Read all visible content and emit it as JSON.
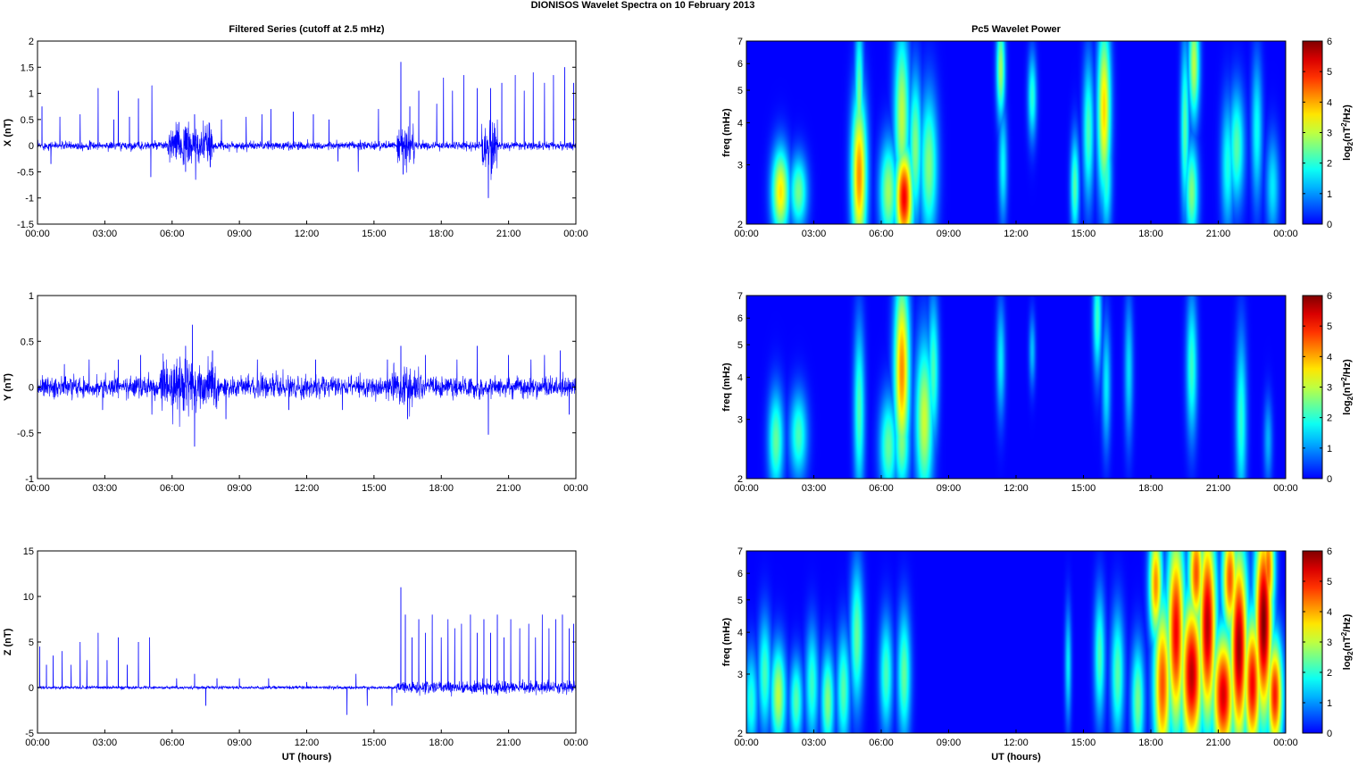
{
  "figure_title": "DIONISOS Wavelet Spectra on 10 February  2013",
  "chart_data": [
    {
      "type": "line",
      "title": "Filtered Series (cutoff at 2.5 mHz)",
      "xlabel": "",
      "ylabel": "X (nT)",
      "xlim": [
        0,
        24
      ],
      "ylim": [
        -1.5,
        2
      ],
      "xticklabels": [
        "00:00",
        "03:00",
        "06:00",
        "09:00",
        "12:00",
        "15:00",
        "18:00",
        "21:00",
        "00:00"
      ],
      "yticks": [
        -1.5,
        -1,
        -0.5,
        0,
        0.5,
        1,
        1.5,
        2
      ],
      "color": "#0000ff",
      "baseline_noise": 0.07,
      "spikes": [
        [
          0.2,
          0.75
        ],
        [
          0.6,
          -0.35
        ],
        [
          1.0,
          0.55
        ],
        [
          1.9,
          0.6
        ],
        [
          2.7,
          1.1
        ],
        [
          3.4,
          0.5
        ],
        [
          3.6,
          1.05
        ],
        [
          4.1,
          0.55
        ],
        [
          4.5,
          0.9
        ],
        [
          5.05,
          -0.6
        ],
        [
          5.1,
          1.15
        ],
        [
          6.3,
          0.45
        ],
        [
          6.6,
          -0.5
        ],
        [
          7.0,
          0.6
        ],
        [
          7.05,
          -0.65
        ],
        [
          7.7,
          -0.4
        ],
        [
          8.2,
          0.5
        ],
        [
          9.3,
          0.55
        ],
        [
          10.0,
          0.6
        ],
        [
          10.4,
          0.7
        ],
        [
          11.4,
          0.65
        ],
        [
          12.3,
          0.6
        ],
        [
          13.0,
          0.5
        ],
        [
          13.4,
          -0.3
        ],
        [
          14.3,
          -0.5
        ],
        [
          15.2,
          0.7
        ],
        [
          16.2,
          1.6
        ],
        [
          16.3,
          -0.55
        ],
        [
          16.6,
          0.75
        ],
        [
          17.0,
          1.05
        ],
        [
          17.8,
          0.8
        ],
        [
          18.1,
          1.3
        ],
        [
          18.5,
          1.05
        ],
        [
          19.0,
          1.35
        ],
        [
          19.6,
          1.1
        ],
        [
          20.1,
          -1.0
        ],
        [
          20.2,
          1.1
        ],
        [
          20.7,
          1.2
        ],
        [
          21.3,
          1.35
        ],
        [
          21.7,
          1.05
        ],
        [
          22.1,
          1.4
        ],
        [
          22.6,
          1.2
        ],
        [
          23.0,
          1.35
        ],
        [
          23.5,
          1.5
        ],
        [
          23.9,
          1.2
        ]
      ],
      "wiggle_bursts": [
        [
          5.8,
          7.8,
          0.35
        ],
        [
          16.0,
          16.8,
          0.35
        ],
        [
          19.8,
          20.5,
          0.45
        ]
      ]
    },
    {
      "type": "line",
      "title": "",
      "xlabel": "",
      "ylabel": "Y (nT)",
      "xlim": [
        0,
        24
      ],
      "ylim": [
        -1,
        1
      ],
      "xticklabels": [
        "00:00",
        "03:00",
        "06:00",
        "09:00",
        "12:00",
        "15:00",
        "18:00",
        "21:00",
        "00:00"
      ],
      "yticks": [
        -1,
        -0.5,
        0,
        0.5,
        1
      ],
      "color": "#0000ff",
      "baseline_noise": 0.1,
      "spikes": [
        [
          1.2,
          0.25
        ],
        [
          2.3,
          0.3
        ],
        [
          2.9,
          -0.25
        ],
        [
          3.6,
          0.3
        ],
        [
          4.6,
          0.35
        ],
        [
          5.1,
          -0.3
        ],
        [
          6.6,
          0.45
        ],
        [
          6.9,
          0.68
        ],
        [
          7.0,
          -0.65
        ],
        [
          7.8,
          0.4
        ],
        [
          8.4,
          -0.35
        ],
        [
          9.8,
          0.3
        ],
        [
          11.2,
          -0.25
        ],
        [
          12.4,
          0.3
        ],
        [
          13.6,
          -0.25
        ],
        [
          15.6,
          0.3
        ],
        [
          16.2,
          0.45
        ],
        [
          16.5,
          -0.35
        ],
        [
          17.3,
          0.35
        ],
        [
          18.7,
          0.3
        ],
        [
          19.6,
          0.45
        ],
        [
          20.1,
          -0.52
        ],
        [
          21.0,
          0.35
        ],
        [
          22.0,
          0.3
        ],
        [
          22.6,
          0.35
        ],
        [
          23.3,
          0.4
        ],
        [
          23.7,
          -0.3
        ]
      ],
      "wiggle_bursts": [
        [
          5.5,
          8.0,
          0.25
        ],
        [
          15.8,
          17.0,
          0.2
        ]
      ]
    },
    {
      "type": "line",
      "title": "",
      "xlabel": "UT (hours)",
      "ylabel": "Z (nT)",
      "xlim": [
        0,
        24
      ],
      "ylim": [
        -5,
        15
      ],
      "xticklabels": [
        "00:00",
        "03:00",
        "06:00",
        "09:00",
        "12:00",
        "15:00",
        "18:00",
        "21:00",
        "00:00"
      ],
      "yticks": [
        -5,
        0,
        5,
        10,
        15
      ],
      "color": "#0000ff",
      "baseline_noise": 0.15,
      "spikes": [
        [
          0.1,
          4.5
        ],
        [
          0.4,
          2.5
        ],
        [
          0.7,
          3.5
        ],
        [
          1.1,
          4.0
        ],
        [
          1.5,
          2.5
        ],
        [
          1.9,
          5.0
        ],
        [
          2.2,
          3.0
        ],
        [
          2.7,
          6.0
        ],
        [
          3.1,
          3.0
        ],
        [
          3.6,
          5.5
        ],
        [
          4.0,
          2.5
        ],
        [
          4.5,
          5.0
        ],
        [
          5.0,
          5.5
        ],
        [
          6.2,
          1.0
        ],
        [
          7.0,
          1.5
        ],
        [
          7.5,
          -2.0
        ],
        [
          8.0,
          1.0
        ],
        [
          9.0,
          1.0
        ],
        [
          10.3,
          1.0
        ],
        [
          12.0,
          0.6
        ],
        [
          13.8,
          -3.0
        ],
        [
          14.2,
          1.5
        ],
        [
          14.7,
          -2.0
        ],
        [
          15.8,
          -2.0
        ],
        [
          16.2,
          11.0
        ],
        [
          16.4,
          8.0
        ],
        [
          16.7,
          5.5
        ],
        [
          17.0,
          7.5
        ],
        [
          17.3,
          6.0
        ],
        [
          17.6,
          8.0
        ],
        [
          18.0,
          5.5
        ],
        [
          18.3,
          7.5
        ],
        [
          18.6,
          6.5
        ],
        [
          18.9,
          7.0
        ],
        [
          19.3,
          8.0
        ],
        [
          19.6,
          6.0
        ],
        [
          19.9,
          7.5
        ],
        [
          20.2,
          6.0
        ],
        [
          20.5,
          8.0
        ],
        [
          20.8,
          5.5
        ],
        [
          21.1,
          7.5
        ],
        [
          21.5,
          6.5
        ],
        [
          21.9,
          7.0
        ],
        [
          22.2,
          5.5
        ],
        [
          22.5,
          8.0
        ],
        [
          22.8,
          6.5
        ],
        [
          23.1,
          7.5
        ],
        [
          23.4,
          8.0
        ],
        [
          23.7,
          6.5
        ],
        [
          23.9,
          7.0
        ]
      ],
      "wiggle_bursts": [
        [
          16.0,
          24.0,
          0.6
        ]
      ]
    },
    {
      "type": "heatmap",
      "title": "Pc5 Wavelet Power",
      "xlabel": "",
      "ylabel": "freq (mHz)",
      "xlim": [
        0,
        24
      ],
      "ylim": [
        2,
        7
      ],
      "yscale": "log",
      "xticklabels": [
        "00:00",
        "03:00",
        "06:00",
        "09:00",
        "12:00",
        "15:00",
        "18:00",
        "21:00",
        "00:00"
      ],
      "yticks": [
        2,
        3,
        4,
        5,
        6,
        7
      ],
      "colorbar_label": "log2(nT2/Hz)",
      "colorbar_ticks": [
        0,
        1,
        2,
        3,
        4,
        5,
        6
      ],
      "clim": [
        0,
        6
      ],
      "blobs": [
        [
          1.5,
          2.5,
          0.4,
          0.3,
          3.6
        ],
        [
          2.3,
          2.5,
          0.4,
          0.25,
          2.5
        ],
        [
          5.0,
          2.8,
          0.35,
          0.55,
          4.2
        ],
        [
          5.0,
          4.5,
          0.2,
          0.6,
          2.5
        ],
        [
          6.3,
          2.5,
          0.4,
          0.35,
          2.8
        ],
        [
          7.0,
          2.4,
          0.4,
          0.35,
          5.2
        ],
        [
          6.9,
          4.2,
          0.35,
          0.6,
          3.0
        ],
        [
          7.5,
          3.4,
          0.3,
          0.5,
          2.6
        ],
        [
          8.1,
          3.0,
          0.4,
          0.5,
          2.6
        ],
        [
          11.3,
          5.8,
          0.2,
          0.35,
          2.8
        ],
        [
          11.4,
          3.0,
          0.2,
          0.4,
          1.7
        ],
        [
          12.7,
          4.8,
          0.2,
          0.3,
          2.0
        ],
        [
          14.6,
          2.6,
          0.2,
          0.35,
          2.3
        ],
        [
          15.2,
          3.8,
          0.25,
          0.5,
          2.2
        ],
        [
          15.9,
          4.4,
          0.3,
          0.6,
          3.7
        ],
        [
          16.0,
          2.8,
          0.25,
          0.4,
          2.1
        ],
        [
          19.5,
          3.9,
          0.2,
          0.6,
          2.3
        ],
        [
          19.8,
          2.5,
          0.3,
          0.35,
          2.6
        ],
        [
          19.9,
          6.0,
          0.25,
          0.4,
          3.0
        ],
        [
          21.4,
          3.0,
          0.3,
          0.45,
          1.9
        ],
        [
          21.8,
          3.4,
          0.35,
          0.4,
          2.3
        ],
        [
          22.7,
          3.8,
          0.25,
          0.5,
          1.8
        ],
        [
          23.4,
          2.6,
          0.3,
          0.35,
          1.6
        ]
      ]
    },
    {
      "type": "heatmap",
      "title": "",
      "xlabel": "",
      "ylabel": "freq (mHz)",
      "xlim": [
        0,
        24
      ],
      "ylim": [
        2,
        7
      ],
      "yscale": "log",
      "xticklabels": [
        "00:00",
        "03:00",
        "06:00",
        "09:00",
        "12:00",
        "15:00",
        "18:00",
        "21:00",
        "00:00"
      ],
      "yticks": [
        2,
        3,
        4,
        5,
        6,
        7
      ],
      "colorbar_label": "log2(nT2/Hz)",
      "colorbar_ticks": [
        0,
        1,
        2,
        3,
        4,
        5,
        6
      ],
      "clim": [
        0,
        6
      ],
      "blobs": [
        [
          1.3,
          2.6,
          0.35,
          0.35,
          2.4
        ],
        [
          2.3,
          2.7,
          0.4,
          0.3,
          2.2
        ],
        [
          5.0,
          3.2,
          0.25,
          0.6,
          2.2
        ],
        [
          6.3,
          2.5,
          0.4,
          0.35,
          2.4
        ],
        [
          6.9,
          4.2,
          0.35,
          0.65,
          4.2
        ],
        [
          6.9,
          2.6,
          0.35,
          0.35,
          2.6
        ],
        [
          7.9,
          3.0,
          0.4,
          0.55,
          3.1
        ],
        [
          8.3,
          4.2,
          0.25,
          0.5,
          2.2
        ],
        [
          11.3,
          4.5,
          0.2,
          0.4,
          1.6
        ],
        [
          12.7,
          4.8,
          0.15,
          0.25,
          1.3
        ],
        [
          15.6,
          6.0,
          0.2,
          0.4,
          2.1
        ],
        [
          16.0,
          3.8,
          0.2,
          0.45,
          1.6
        ],
        [
          17.0,
          4.2,
          0.2,
          0.5,
          1.5
        ],
        [
          19.8,
          4.3,
          0.25,
          0.5,
          2.1
        ],
        [
          22.0,
          3.0,
          0.25,
          0.6,
          2.0
        ],
        [
          23.2,
          2.6,
          0.2,
          0.3,
          1.2
        ]
      ]
    },
    {
      "type": "heatmap",
      "title": "",
      "xlabel": "UT (hours)",
      "ylabel": "freq (mHz)",
      "xlim": [
        0,
        24
      ],
      "ylim": [
        2,
        7
      ],
      "yscale": "log",
      "xticklabels": [
        "00:00",
        "03:00",
        "06:00",
        "09:00",
        "12:00",
        "15:00",
        "18:00",
        "21:00",
        "00:00"
      ],
      "yticks": [
        2,
        3,
        4,
        5,
        6,
        7
      ],
      "colorbar_label": "log2(nT2/Hz)",
      "colorbar_ticks": [
        0,
        1,
        2,
        3,
        4,
        5,
        6
      ],
      "clim": [
        0,
        6
      ],
      "blobs": [
        [
          0.2,
          2.5,
          0.3,
          0.35,
          2.0
        ],
        [
          0.8,
          3.0,
          0.3,
          0.4,
          2.2
        ],
        [
          1.4,
          2.6,
          0.35,
          0.35,
          3.0
        ],
        [
          2.2,
          2.5,
          0.3,
          0.3,
          2.3
        ],
        [
          2.9,
          2.8,
          0.3,
          0.4,
          2.1
        ],
        [
          3.6,
          2.5,
          0.3,
          0.35,
          2.6
        ],
        [
          4.3,
          2.7,
          0.3,
          0.4,
          2.3
        ],
        [
          4.9,
          3.9,
          0.3,
          0.5,
          2.4
        ],
        [
          6.2,
          3.0,
          0.3,
          0.4,
          2.2
        ],
        [
          7.0,
          3.0,
          0.3,
          0.45,
          2.4
        ],
        [
          14.3,
          3.2,
          0.15,
          0.4,
          1.6
        ],
        [
          15.7,
          3.4,
          0.25,
          0.45,
          2.2
        ],
        [
          16.5,
          3.0,
          0.3,
          0.45,
          2.3
        ],
        [
          17.4,
          2.5,
          0.3,
          0.4,
          2.5
        ],
        [
          18.5,
          2.8,
          0.4,
          0.6,
          4.6
        ],
        [
          19.1,
          4.0,
          0.4,
          0.7,
          5.2
        ],
        [
          19.8,
          3.0,
          0.5,
          0.55,
          5.6
        ],
        [
          20.5,
          4.2,
          0.4,
          0.7,
          5.6
        ],
        [
          21.2,
          2.6,
          0.5,
          0.45,
          5.4
        ],
        [
          21.9,
          3.6,
          0.4,
          0.7,
          5.8
        ],
        [
          22.5,
          2.8,
          0.4,
          0.5,
          5.2
        ],
        [
          23.0,
          4.3,
          0.4,
          0.7,
          6.0
        ],
        [
          23.5,
          2.6,
          0.35,
          0.4,
          5.0
        ],
        [
          18.2,
          5.6,
          0.3,
          0.4,
          4.2
        ],
        [
          20.0,
          6.0,
          0.35,
          0.4,
          4.6
        ],
        [
          21.5,
          5.8,
          0.35,
          0.4,
          4.6
        ],
        [
          23.2,
          6.2,
          0.3,
          0.4,
          4.5
        ]
      ]
    }
  ]
}
